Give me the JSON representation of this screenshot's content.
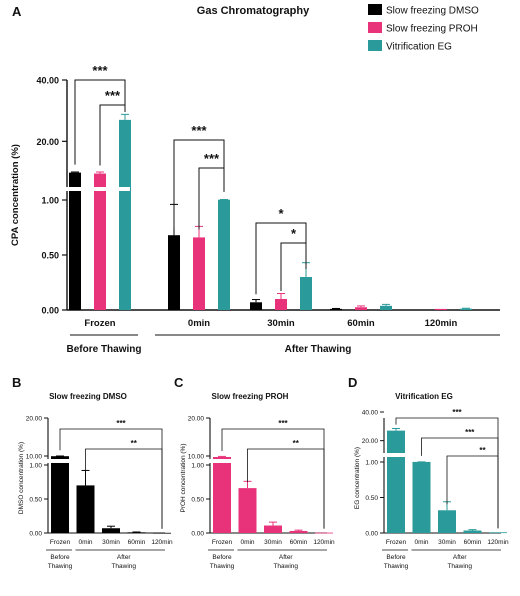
{
  "colors": {
    "dmso": "#000000",
    "proh": "#e8337a",
    "eg": "#2a9a9a"
  },
  "chart_data": [
    {
      "panel": "A",
      "type": "bar",
      "title": "Gas Chromatography",
      "ylabel": "CPA concentration (%)",
      "y_axis": {
        "scale": "segmented",
        "segments": [
          [
            0,
            1.0
          ],
          [
            1.0,
            10
          ],
          [
            10,
            40
          ]
        ],
        "ticks": [
          "0.00",
          "0.50",
          "1.00",
          "20.00",
          "40.00"
        ]
      },
      "categories": [
        "Frozen",
        "0min",
        "30min",
        "60min",
        "120min"
      ],
      "groups": [
        {
          "label": "Before Thawing",
          "categories": [
            "Frozen"
          ]
        },
        {
          "label": "After Thawing",
          "categories": [
            "0min",
            "30min",
            "60min",
            "120min"
          ]
        }
      ],
      "legend_position": "top-right",
      "series": [
        {
          "name": "Slow freezing DMSO",
          "color": "#000000",
          "values": [
            9.8,
            0.68,
            0.07,
            0.01,
            0.0
          ],
          "errors": [
            0.2,
            0.28,
            0.025,
            0.004,
            0.0
          ]
        },
        {
          "name": "Slow freezing PROH",
          "color": "#e8337a",
          "values": [
            9.5,
            0.66,
            0.1,
            0.025,
            0.01
          ],
          "errors": [
            0.5,
            0.1,
            0.05,
            0.012,
            0.0
          ]
        },
        {
          "name": "Vitrification EG",
          "color": "#2a9a9a",
          "values": [
            27.0,
            1.1,
            0.3,
            0.038,
            0.012
          ],
          "errors": [
            1.8,
            0.05,
            0.13,
            0.013,
            0.004
          ]
        }
      ],
      "significance": [
        {
          "from": "Frozen-DMSO",
          "to": "Frozen-EG",
          "label": "***"
        },
        {
          "from": "Frozen-PROH",
          "to": "Frozen-EG",
          "label": "***"
        },
        {
          "from": "0min-DMSO",
          "to": "0min-EG",
          "label": "***"
        },
        {
          "from": "0min-PROH",
          "to": "0min-EG",
          "label": "***"
        },
        {
          "from": "30min-DMSO",
          "to": "30min-EG",
          "label": "*"
        },
        {
          "from": "30min-PROH",
          "to": "30min-EG",
          "label": "*"
        }
      ]
    },
    {
      "panel": "B",
      "type": "bar",
      "title": "Slow freezing DMSO",
      "ylabel": "DMSO concentration (%)",
      "color": "#000000",
      "y_axis": {
        "scale": "segmented",
        "ticks": [
          "0.00",
          "0.50",
          "1.00",
          "10.00",
          "20.00"
        ]
      },
      "categories": [
        "Frozen",
        "0min",
        "30min",
        "60min",
        "120min"
      ],
      "values": [
        9.8,
        0.7,
        0.07,
        0.01,
        0.003
      ],
      "errors": [
        0.2,
        0.22,
        0.03,
        0.005,
        0.0
      ],
      "significance": [
        {
          "from": "Frozen",
          "to": "120min",
          "label": "***"
        },
        {
          "from": "0min",
          "to": "120min",
          "label": "**"
        }
      ]
    },
    {
      "panel": "C",
      "type": "bar",
      "title": "Slow freezing PROH",
      "ylabel": "PrOH concentration (%)",
      "color": "#e8337a",
      "y_axis": {
        "scale": "segmented",
        "ticks": [
          "0.00",
          "0.50",
          "1.00",
          "10.00",
          "20.00"
        ]
      },
      "categories": [
        "Frozen",
        "0min",
        "30min",
        "60min",
        "120min"
      ],
      "values": [
        9.0,
        0.66,
        0.11,
        0.03,
        0.005
      ],
      "errors": [
        0.6,
        0.1,
        0.05,
        0.012,
        0.0
      ],
      "significance": [
        {
          "from": "Frozen",
          "to": "120min",
          "label": "***"
        },
        {
          "from": "0min",
          "to": "120min",
          "label": "**"
        }
      ]
    },
    {
      "panel": "D",
      "type": "bar",
      "title": "Vitrification EG",
      "ylabel": "EG concentration (%)",
      "color": "#2a9a9a",
      "y_axis": {
        "scale": "segmented",
        "ticks": [
          "0.00",
          "0.50",
          "1.00",
          "20.00",
          "40.00"
        ]
      },
      "categories": [
        "Frozen",
        "0min",
        "30min",
        "60min",
        "120min"
      ],
      "values": [
        27.0,
        1.1,
        0.32,
        0.035,
        0.01
      ],
      "errors": [
        1.5,
        0.05,
        0.12,
        0.012,
        0.0
      ],
      "significance": [
        {
          "from": "Frozen",
          "to": "120min",
          "label": "***"
        },
        {
          "from": "0min",
          "to": "120min",
          "label": "***"
        },
        {
          "from": "30min",
          "to": "120min",
          "label": "**"
        }
      ]
    }
  ],
  "text": {
    "panel_a": "A",
    "panel_b": "B",
    "panel_c": "C",
    "panel_d": "D",
    "before_thawing": "Before Thawing",
    "after_thawing": "After Thawing",
    "before": "Before",
    "thawing": "Thawing",
    "after": "After"
  }
}
